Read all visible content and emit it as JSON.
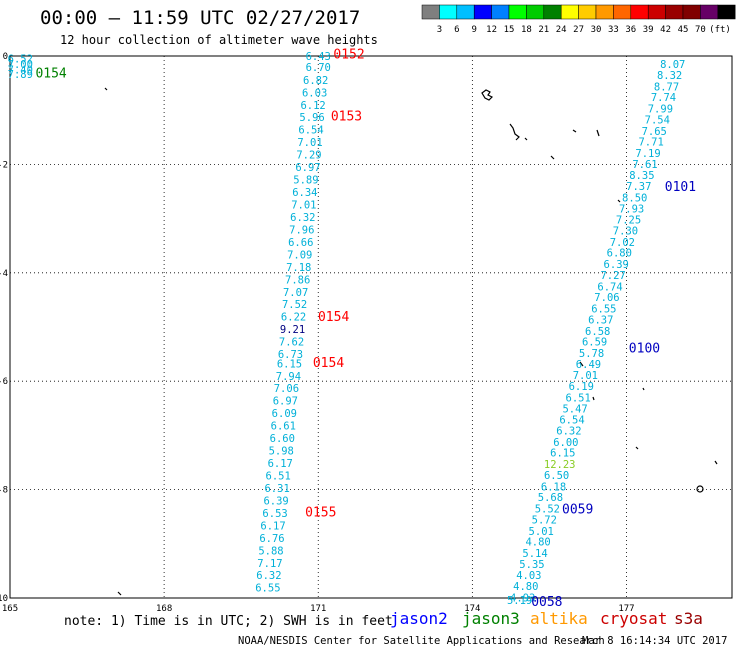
{
  "header": {
    "title": "00:00 — 11:59 UTC 02/27/2017",
    "subtitle": "12 hour collection of altimeter wave heights"
  },
  "legend": {
    "colors": [
      "#7f7f7f",
      "#00ffff",
      "#00bfff",
      "#0000ff",
      "#0080ff",
      "#00ff00",
      "#00cc00",
      "#008000",
      "#ffff00",
      "#ffcc00",
      "#ff9900",
      "#ff6600",
      "#ff0000",
      "#cc0000",
      "#990000",
      "#800000",
      "#660066",
      "#000000"
    ],
    "labels": [
      "3",
      "6",
      "9",
      "12",
      "15",
      "18",
      "21",
      "24",
      "27",
      "30",
      "33",
      "36",
      "39",
      "42",
      "45",
      "70"
    ],
    "unit": "(ft)"
  },
  "axes": {
    "x_ticks": [
      {
        "value": 165,
        "label": "165"
      },
      {
        "value": 168,
        "label": "168"
      },
      {
        "value": 171,
        "label": "171"
      },
      {
        "value": 174,
        "label": "174"
      },
      {
        "value": 177,
        "label": "177"
      }
    ],
    "y_ticks": [
      {
        "value": 0,
        "label": "0"
      },
      {
        "value": -2,
        "label": "-2"
      },
      {
        "value": -4,
        "label": "-4"
      },
      {
        "value": -6,
        "label": "-6"
      },
      {
        "value": -8,
        "label": "-8"
      },
      {
        "value": -10,
        "label": "-10"
      }
    ]
  },
  "chart_data": {
    "type": "scatter",
    "title": "00:00 — 11:59 UTC 02/27/2017",
    "subtitle": "12 hour collection of altimeter wave heights",
    "xlim": [
      165,
      178
    ],
    "ylim": [
      -10,
      0
    ],
    "grid": true,
    "series": [
      {
        "name": "jason3",
        "color": "#00b0d8",
        "points": [
          {
            "x": 165.2,
            "y": -0.05,
            "v": "6.52"
          },
          {
            "x": 165.2,
            "y": -0.15,
            "v": "7.00"
          },
          {
            "x": 165.2,
            "y": -0.25,
            "v": "7.40"
          },
          {
            "x": 165.2,
            "y": -0.33,
            "v": "7.89"
          }
        ]
      },
      {
        "name": "cryosat",
        "color": "#00b0d8",
        "points": [
          {
            "x": 171.0,
            "y": 0.0,
            "v": "6.43"
          },
          {
            "x": 171.0,
            "y": -0.2,
            "v": "6.70"
          },
          {
            "x": 170.95,
            "y": -0.44,
            "v": "6.82"
          },
          {
            "x": 170.93,
            "y": -0.67,
            "v": "6.03"
          },
          {
            "x": 170.9,
            "y": -0.9,
            "v": "6.12"
          },
          {
            "x": 170.88,
            "y": -1.13,
            "v": "5.96"
          },
          {
            "x": 170.86,
            "y": -1.36,
            "v": "6.54"
          },
          {
            "x": 170.84,
            "y": -1.59,
            "v": "7.01"
          },
          {
            "x": 170.82,
            "y": -1.82,
            "v": "7.29"
          },
          {
            "x": 170.8,
            "y": -2.05,
            "v": "6.97"
          },
          {
            "x": 170.76,
            "y": -2.28,
            "v": "5.89"
          },
          {
            "x": 170.74,
            "y": -2.51,
            "v": "6.34"
          },
          {
            "x": 170.72,
            "y": -2.74,
            "v": "7.01"
          },
          {
            "x": 170.7,
            "y": -2.97,
            "v": "6.32"
          },
          {
            "x": 170.68,
            "y": -3.2,
            "v": "7.96"
          },
          {
            "x": 170.66,
            "y": -3.43,
            "v": "6.66"
          },
          {
            "x": 170.64,
            "y": -3.66,
            "v": "7.09"
          },
          {
            "x": 170.62,
            "y": -3.89,
            "v": "7.18"
          },
          {
            "x": 170.6,
            "y": -4.12,
            "v": "7.86"
          },
          {
            "x": 170.56,
            "y": -4.35,
            "v": "7.07"
          },
          {
            "x": 170.54,
            "y": -4.58,
            "v": "7.52"
          },
          {
            "x": 170.52,
            "y": -4.81,
            "v": "6.22"
          },
          {
            "x": 170.5,
            "y": -5.04,
            "v": "9.21",
            "c": "#000080"
          },
          {
            "x": 170.48,
            "y": -5.27,
            "v": "7.62"
          },
          {
            "x": 170.46,
            "y": -5.5,
            "v": "6.73"
          },
          {
            "x": 170.44,
            "y": -5.67,
            "v": "6.15"
          },
          {
            "x": 170.42,
            "y": -5.9,
            "v": "7.94"
          },
          {
            "x": 170.38,
            "y": -6.13,
            "v": "7.06"
          },
          {
            "x": 170.36,
            "y": -6.36,
            "v": "6.97"
          },
          {
            "x": 170.34,
            "y": -6.59,
            "v": "6.09"
          },
          {
            "x": 170.32,
            "y": -6.82,
            "v": "6.61"
          },
          {
            "x": 170.3,
            "y": -7.05,
            "v": "6.60"
          },
          {
            "x": 170.28,
            "y": -7.28,
            "v": "5.98"
          },
          {
            "x": 170.26,
            "y": -7.51,
            "v": "6.17"
          },
          {
            "x": 170.22,
            "y": -7.74,
            "v": "6.51"
          },
          {
            "x": 170.2,
            "y": -7.97,
            "v": "6.31"
          },
          {
            "x": 170.18,
            "y": -8.2,
            "v": "6.39"
          },
          {
            "x": 170.16,
            "y": -8.43,
            "v": "6.53"
          },
          {
            "x": 170.12,
            "y": -8.66,
            "v": "6.17"
          },
          {
            "x": 170.1,
            "y": -8.89,
            "v": "6.76"
          },
          {
            "x": 170.08,
            "y": -9.12,
            "v": "5.88"
          },
          {
            "x": 170.06,
            "y": -9.35,
            "v": "7.17"
          },
          {
            "x": 170.04,
            "y": -9.58,
            "v": "6.32"
          },
          {
            "x": 170.02,
            "y": -9.81,
            "v": "6.55"
          }
        ]
      },
      {
        "name": "jason2",
        "color": "#00b0d8",
        "points": [
          {
            "x": 177.9,
            "y": -0.15,
            "v": "8.07"
          },
          {
            "x": 177.84,
            "y": -0.35,
            "v": "8.32"
          },
          {
            "x": 177.78,
            "y": -0.56,
            "v": "8.77"
          },
          {
            "x": 177.72,
            "y": -0.76,
            "v": "7.74"
          },
          {
            "x": 177.66,
            "y": -0.97,
            "v": "7.99"
          },
          {
            "x": 177.6,
            "y": -1.17,
            "v": "7.54"
          },
          {
            "x": 177.54,
            "y": -1.38,
            "v": "7.65"
          },
          {
            "x": 177.48,
            "y": -1.58,
            "v": "7.71"
          },
          {
            "x": 177.42,
            "y": -1.79,
            "v": "7.19"
          },
          {
            "x": 177.36,
            "y": -1.99,
            "v": "7.61"
          },
          {
            "x": 177.3,
            "y": -2.2,
            "v": "8.35"
          },
          {
            "x": 177.24,
            "y": -2.4,
            "v": "7.37"
          },
          {
            "x": 177.16,
            "y": -2.61,
            "v": "8.50"
          },
          {
            "x": 177.1,
            "y": -2.81,
            "v": "7.93"
          },
          {
            "x": 177.04,
            "y": -3.02,
            "v": "7.25"
          },
          {
            "x": 176.98,
            "y": -3.22,
            "v": "7.30"
          },
          {
            "x": 176.92,
            "y": -3.43,
            "v": "7.02"
          },
          {
            "x": 176.86,
            "y": -3.63,
            "v": "6.80"
          },
          {
            "x": 176.8,
            "y": -3.84,
            "v": "6.39"
          },
          {
            "x": 176.74,
            "y": -4.04,
            "v": "7.27"
          },
          {
            "x": 176.68,
            "y": -4.25,
            "v": "6.74"
          },
          {
            "x": 176.62,
            "y": -4.45,
            "v": "7.06"
          },
          {
            "x": 176.56,
            "y": -4.66,
            "v": "6.55"
          },
          {
            "x": 176.5,
            "y": -4.86,
            "v": "6.37"
          },
          {
            "x": 176.44,
            "y": -5.07,
            "v": "6.58"
          },
          {
            "x": 176.38,
            "y": -5.27,
            "v": "6.59"
          },
          {
            "x": 176.32,
            "y": -5.48,
            "v": "5.78"
          },
          {
            "x": 176.26,
            "y": -5.68,
            "v": "6.49"
          },
          {
            "x": 176.2,
            "y": -5.89,
            "v": "7.01"
          },
          {
            "x": 176.12,
            "y": -6.09,
            "v": "6.19"
          },
          {
            "x": 176.06,
            "y": -6.3,
            "v": "6.51"
          },
          {
            "x": 176.0,
            "y": -6.5,
            "v": "5.47"
          },
          {
            "x": 175.94,
            "y": -6.71,
            "v": "6.54"
          },
          {
            "x": 175.88,
            "y": -6.91,
            "v": "6.32"
          },
          {
            "x": 175.82,
            "y": -7.12,
            "v": "6.00"
          },
          {
            "x": 175.76,
            "y": -7.32,
            "v": "6.15"
          },
          {
            "x": 175.7,
            "y": -7.53,
            "v": "12.23",
            "c": "#88cc22"
          },
          {
            "x": 175.64,
            "y": -7.73,
            "v": "6.50"
          },
          {
            "x": 175.58,
            "y": -7.94,
            "v": "6.18"
          },
          {
            "x": 175.52,
            "y": -8.14,
            "v": "5.68"
          },
          {
            "x": 175.46,
            "y": -8.35,
            "v": "5.52"
          },
          {
            "x": 175.4,
            "y": -8.55,
            "v": "5.72"
          },
          {
            "x": 175.34,
            "y": -8.76,
            "v": "5.01"
          },
          {
            "x": 175.28,
            "y": -8.96,
            "v": "4.80"
          },
          {
            "x": 175.22,
            "y": -9.17,
            "v": "5.14"
          },
          {
            "x": 175.16,
            "y": -9.37,
            "v": "5.35"
          },
          {
            "x": 175.1,
            "y": -9.58,
            "v": "4.03"
          },
          {
            "x": 175.04,
            "y": -9.78,
            "v": "4.80"
          },
          {
            "x": 174.98,
            "y": -9.99,
            "v": "4.93"
          },
          {
            "x": 174.92,
            "y": -10.19,
            "v": "5.19"
          }
        ]
      }
    ],
    "pass_labels": [
      {
        "x": 165.8,
        "y": -0.3,
        "v": "0154",
        "c": "#008000"
      },
      {
        "x": 171.6,
        "y": 0.05,
        "v": "0152",
        "c": "#ff0000"
      },
      {
        "x": 171.55,
        "y": -1.1,
        "v": "0153",
        "c": "#ff0000"
      },
      {
        "x": 171.3,
        "y": -4.8,
        "v": "0154",
        "c": "#ff0000"
      },
      {
        "x": 171.2,
        "y": -5.65,
        "v": "0154",
        "c": "#ff0000"
      },
      {
        "x": 171.05,
        "y": -8.4,
        "v": "0155",
        "c": "#ff0000"
      },
      {
        "x": 178.05,
        "y": -2.4,
        "v": "0101",
        "c": "#0000c0"
      },
      {
        "x": 177.35,
        "y": -5.38,
        "v": "0100",
        "c": "#0000c0"
      },
      {
        "x": 176.05,
        "y": -8.35,
        "v": "0059",
        "c": "#0000c0"
      },
      {
        "x": 175.45,
        "y": -10.25,
        "v": "0058",
        "c": "#0000c0"
      }
    ]
  },
  "footer": {
    "note": "note: 1) Time is in UTC; 2) SWH is in feet",
    "satellites": [
      {
        "name": "jason2",
        "color": "#0000ff"
      },
      {
        "name": "jason3",
        "color": "#008000"
      },
      {
        "name": "altika",
        "color": "#ff9900"
      },
      {
        "name": "cryosat",
        "color": "#cc0000"
      },
      {
        "name": "s3a",
        "color": "#990000"
      }
    ],
    "credit": "NOAA/NESDIS Center for Satellite Applications and Research",
    "timestamp": "Mar  8 16:14:34 UTC 2017"
  }
}
